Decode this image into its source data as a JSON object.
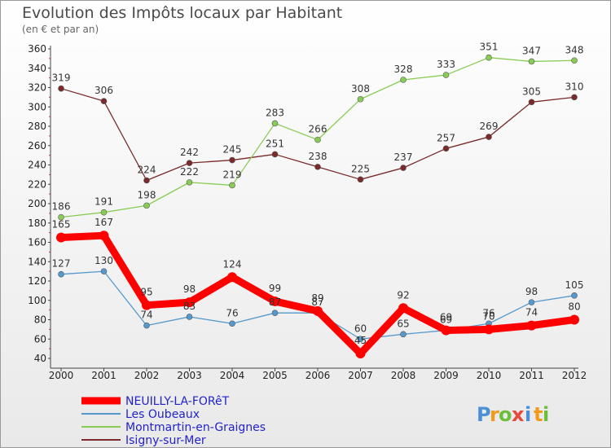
{
  "chart_data": {
    "type": "line",
    "title": "Evolution des Impôts locaux par Habitant",
    "subtitle": "(en € et par an)",
    "xlabel": "",
    "ylabel": "",
    "categories": [
      "2000",
      "2001",
      "2002",
      "2003",
      "2004",
      "2005",
      "2006",
      "2007",
      "2008",
      "2009",
      "2010",
      "2011",
      "2012"
    ],
    "ylim": [
      40,
      360
    ],
    "yticks": [
      40,
      60,
      80,
      100,
      120,
      140,
      160,
      180,
      200,
      220,
      240,
      260,
      280,
      300,
      320,
      340,
      360
    ],
    "grid": false,
    "legend_position": "bottom-left",
    "series": [
      {
        "name": "NEUILLY-LA-FORêT",
        "color": "#ff0000",
        "values": [
          165,
          167,
          95,
          98,
          124,
          99,
          89,
          45,
          92,
          69,
          70,
          74,
          80
        ]
      },
      {
        "name": "Les Oubeaux",
        "color": "#5599cc",
        "values": [
          127,
          130,
          74,
          83,
          76,
          87,
          87,
          60,
          65,
          69,
          76,
          98,
          105
        ]
      },
      {
        "name": "Montmartin-en-Graignes",
        "color": "#88cc55",
        "values": [
          186,
          191,
          198,
          222,
          219,
          283,
          266,
          308,
          328,
          333,
          351,
          347,
          348
        ]
      },
      {
        "name": "Isigny-sur-Mer",
        "color": "#7a2a2a",
        "values": [
          319,
          306,
          224,
          242,
          245,
          251,
          238,
          225,
          237,
          257,
          269,
          305,
          310
        ]
      }
    ]
  },
  "brand": {
    "letters": [
      "P",
      "r",
      "o",
      "x",
      "i",
      "t",
      "i"
    ],
    "colors": [
      "#4a8fd8",
      "#f29a1a",
      "#6cbf3a",
      "#e8473a",
      "#4a8fd8",
      "#f29a1a",
      "#6cbf3a"
    ]
  }
}
